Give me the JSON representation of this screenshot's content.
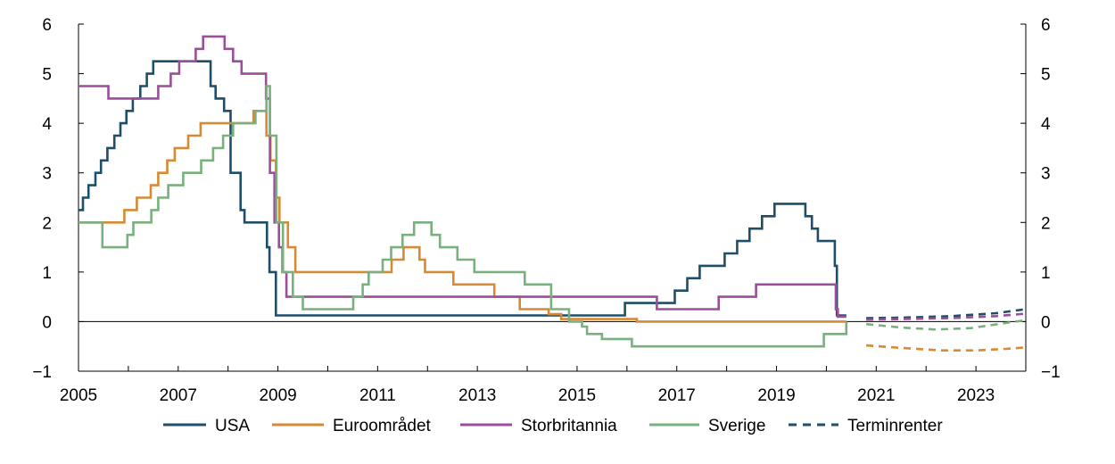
{
  "chart_data": {
    "type": "line",
    "title": "",
    "xlabel": "",
    "ylabel": "",
    "xlim": [
      2005,
      2024
    ],
    "ylim": [
      -1,
      6
    ],
    "x_ticks": [
      2005,
      2007,
      2009,
      2011,
      2013,
      2015,
      2017,
      2019,
      2021,
      2023
    ],
    "x_tick_labels": [
      "2005",
      "2007",
      "2009",
      "2011",
      "2013",
      "2015",
      "2017",
      "2019",
      "2021",
      "2023"
    ],
    "y_ticks": [
      -1,
      0,
      1,
      2,
      3,
      4,
      5,
      6
    ],
    "y_tick_labels": [
      "−1",
      "0",
      "1",
      "2",
      "3",
      "4",
      "5",
      "6"
    ],
    "y_axes": "left and right",
    "zero_line": true,
    "grid": false,
    "legend_position": "bottom",
    "series": [
      {
        "name": "USA",
        "color": "#1f4e6b",
        "style": "step",
        "points": [
          [
            2005.0,
            2.25
          ],
          [
            2005.09,
            2.5
          ],
          [
            2005.2,
            2.75
          ],
          [
            2005.34,
            3.0
          ],
          [
            2005.45,
            3.25
          ],
          [
            2005.58,
            3.5
          ],
          [
            2005.72,
            3.75
          ],
          [
            2005.84,
            4.0
          ],
          [
            2005.96,
            4.25
          ],
          [
            2006.09,
            4.5
          ],
          [
            2006.24,
            4.75
          ],
          [
            2006.37,
            5.0
          ],
          [
            2006.5,
            5.25
          ],
          [
            2007.65,
            4.75
          ],
          [
            2007.75,
            4.5
          ],
          [
            2007.92,
            4.25
          ],
          [
            2008.05,
            3.0
          ],
          [
            2008.09,
            3.0
          ],
          [
            2008.25,
            2.25
          ],
          [
            2008.33,
            2.0
          ],
          [
            2008.78,
            1.5
          ],
          [
            2008.83,
            1.0
          ],
          [
            2008.96,
            0.125
          ],
          [
            2015.96,
            0.375
          ],
          [
            2016.96,
            0.625
          ],
          [
            2017.21,
            0.875
          ],
          [
            2017.46,
            1.125
          ],
          [
            2017.96,
            1.375
          ],
          [
            2018.21,
            1.625
          ],
          [
            2018.46,
            1.875
          ],
          [
            2018.71,
            2.125
          ],
          [
            2018.96,
            2.375
          ],
          [
            2019.58,
            2.125
          ],
          [
            2019.71,
            1.875
          ],
          [
            2019.83,
            1.625
          ],
          [
            2020.17,
            1.125
          ],
          [
            2020.21,
            0.125
          ],
          [
            2020.4,
            0.125
          ]
        ]
      },
      {
        "name": "Euroområdet",
        "color": "#d68a35",
        "style": "step",
        "points": [
          [
            2005.0,
            2.0
          ],
          [
            2005.92,
            2.25
          ],
          [
            2006.17,
            2.5
          ],
          [
            2006.45,
            2.75
          ],
          [
            2006.6,
            3.0
          ],
          [
            2006.78,
            3.25
          ],
          [
            2006.93,
            3.5
          ],
          [
            2007.2,
            3.75
          ],
          [
            2007.45,
            4.0
          ],
          [
            2008.51,
            4.25
          ],
          [
            2008.77,
            3.75
          ],
          [
            2008.85,
            3.25
          ],
          [
            2008.96,
            2.5
          ],
          [
            2009.03,
            2.0
          ],
          [
            2009.2,
            1.5
          ],
          [
            2009.35,
            1.0
          ],
          [
            2011.28,
            1.25
          ],
          [
            2011.52,
            1.5
          ],
          [
            2011.84,
            1.25
          ],
          [
            2011.95,
            1.0
          ],
          [
            2012.52,
            0.75
          ],
          [
            2013.34,
            0.5
          ],
          [
            2013.85,
            0.25
          ],
          [
            2014.43,
            0.15
          ],
          [
            2014.68,
            0.05
          ],
          [
            2016.2,
            0.0
          ],
          [
            2020.4,
            0.0
          ]
        ]
      },
      {
        "name": "Storbritannia",
        "color": "#9b4f9b",
        "style": "step",
        "points": [
          [
            2005.0,
            4.75
          ],
          [
            2005.6,
            4.5
          ],
          [
            2006.6,
            4.75
          ],
          [
            2006.85,
            5.0
          ],
          [
            2007.02,
            5.25
          ],
          [
            2007.35,
            5.5
          ],
          [
            2007.5,
            5.75
          ],
          [
            2007.93,
            5.5
          ],
          [
            2008.1,
            5.25
          ],
          [
            2008.27,
            5.0
          ],
          [
            2008.76,
            4.5
          ],
          [
            2008.84,
            3.0
          ],
          [
            2008.93,
            2.0
          ],
          [
            2009.02,
            1.5
          ],
          [
            2009.09,
            1.0
          ],
          [
            2009.17,
            0.5
          ],
          [
            2016.6,
            0.25
          ],
          [
            2017.84,
            0.5
          ],
          [
            2018.59,
            0.75
          ],
          [
            2020.19,
            0.25
          ],
          [
            2020.23,
            0.1
          ],
          [
            2020.4,
            0.1
          ]
        ]
      },
      {
        "name": "Sverige",
        "color": "#7ab07e",
        "style": "step",
        "points": [
          [
            2005.0,
            2.0
          ],
          [
            2005.48,
            1.5
          ],
          [
            2005.98,
            1.75
          ],
          [
            2006.1,
            2.0
          ],
          [
            2006.46,
            2.25
          ],
          [
            2006.6,
            2.5
          ],
          [
            2006.8,
            2.75
          ],
          [
            2007.1,
            3.0
          ],
          [
            2007.46,
            3.25
          ],
          [
            2007.7,
            3.5
          ],
          [
            2007.9,
            3.75
          ],
          [
            2008.1,
            4.0
          ],
          [
            2008.55,
            4.25
          ],
          [
            2008.77,
            4.75
          ],
          [
            2008.84,
            3.75
          ],
          [
            2008.97,
            2.0
          ],
          [
            2009.1,
            1.0
          ],
          [
            2009.3,
            0.5
          ],
          [
            2009.5,
            0.25
          ],
          [
            2010.51,
            0.5
          ],
          [
            2010.7,
            0.75
          ],
          [
            2010.82,
            1.0
          ],
          [
            2011.1,
            1.25
          ],
          [
            2011.27,
            1.5
          ],
          [
            2011.5,
            1.75
          ],
          [
            2011.73,
            2.0
          ],
          [
            2012.08,
            1.75
          ],
          [
            2012.25,
            1.5
          ],
          [
            2012.6,
            1.25
          ],
          [
            2012.94,
            1.0
          ],
          [
            2013.95,
            0.75
          ],
          [
            2014.48,
            0.25
          ],
          [
            2014.84,
            0.0
          ],
          [
            2015.1,
            -0.1
          ],
          [
            2015.2,
            -0.25
          ],
          [
            2015.5,
            -0.35
          ],
          [
            2016.1,
            -0.5
          ],
          [
            2018.95,
            -0.5
          ],
          [
            2019.95,
            -0.25
          ],
          [
            2020.4,
            0.0
          ]
        ]
      },
      {
        "name": "Terminrenter",
        "color": "#1f4e6b",
        "style": "dashed",
        "note_legend_only": false,
        "forwards": [
          {
            "color": "#1f4e6b",
            "points": [
              [
                2020.8,
                0.07
              ],
              [
                2021.5,
                0.08
              ],
              [
                2022.5,
                0.11
              ],
              [
                2023.4,
                0.17
              ],
              [
                2024.0,
                0.25
              ]
            ]
          },
          {
            "color": "#9b4f9b",
            "points": [
              [
                2020.8,
                0.04
              ],
              [
                2021.5,
                0.05
              ],
              [
                2022.5,
                0.07
              ],
              [
                2023.4,
                0.11
              ],
              [
                2024.0,
                0.16
              ]
            ]
          },
          {
            "color": "#7ab07e",
            "points": [
              [
                2020.8,
                -0.05
              ],
              [
                2021.5,
                -0.12
              ],
              [
                2022.2,
                -0.16
              ],
              [
                2022.9,
                -0.13
              ],
              [
                2023.5,
                -0.04
              ],
              [
                2024.0,
                0.03
              ]
            ]
          },
          {
            "color": "#d68a35",
            "points": [
              [
                2020.8,
                -0.48
              ],
              [
                2021.5,
                -0.53
              ],
              [
                2022.3,
                -0.58
              ],
              [
                2023.0,
                -0.58
              ],
              [
                2023.6,
                -0.55
              ],
              [
                2024.0,
                -0.52
              ]
            ]
          }
        ]
      }
    ]
  }
}
